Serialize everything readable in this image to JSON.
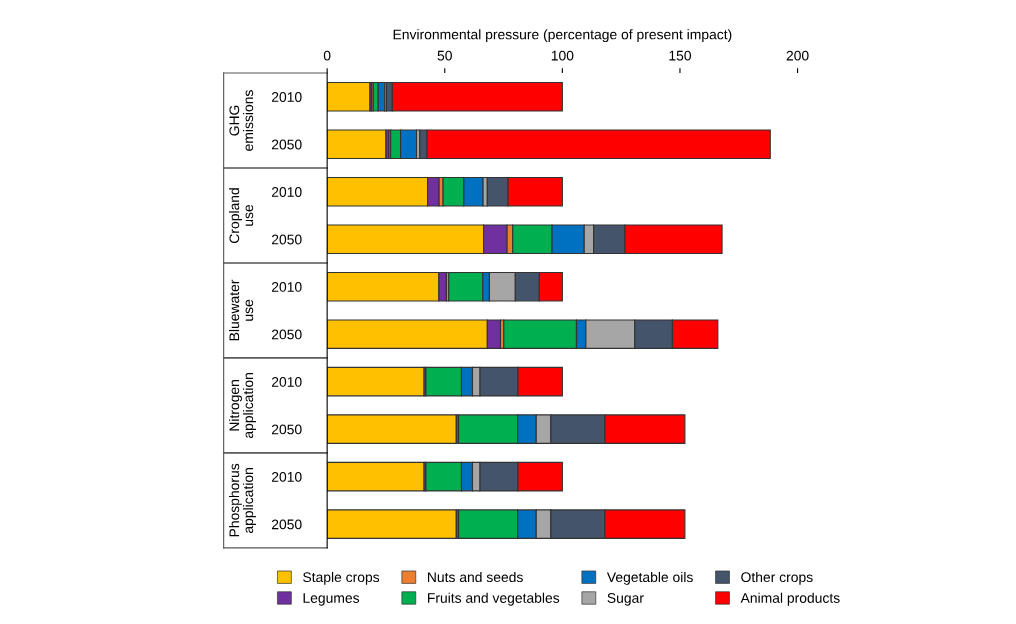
{
  "chart_data": {
    "type": "bar",
    "orientation": "horizontal",
    "stacked": true,
    "xlabel": "Environmental pressure (percentage of present impact)",
    "categories": [
      "2010",
      "2050",
      "2010",
      "2050",
      "2010",
      "2050",
      "2010",
      "2050",
      "2010",
      "2050"
    ],
    "annotations": [
      "GHG\nemissions",
      "Cropland\nuse",
      "Bluewater\nuse",
      "Nitrogen\napplication",
      "Phosphorus\napplication"
    ],
    "xlim": [
      0,
      200
    ],
    "xticks": [
      0,
      50,
      100,
      150,
      200
    ],
    "grid": false,
    "legend": "bottom",
    "series": [
      {
        "name": "Staple crops",
        "color": "#ffc000",
        "values": [
          18.2,
          25.0,
          42.7,
          66.5,
          47.5,
          68.1,
          41.2,
          54.9,
          41.2,
          54.9
        ]
      },
      {
        "name": "Legumes",
        "color": "#7030a0",
        "values": [
          0.7,
          1.3,
          4.9,
          10.0,
          3.2,
          5.6,
          0.8,
          1.0,
          0.8,
          1.0
        ]
      },
      {
        "name": "Nuts and seeds",
        "color": "#ed7d31",
        "values": [
          0.7,
          0.7,
          1.7,
          2.4,
          1.0,
          1.4,
          null,
          null,
          null,
          null
        ]
      },
      {
        "name": "Fruits and vegetables",
        "color": "#00b050",
        "values": [
          2.1,
          4.2,
          8.8,
          16.7,
          14.5,
          30.9,
          15.1,
          25.1,
          15.1,
          25.1
        ]
      },
      {
        "name": "Vegetable oils",
        "color": "#0070c0",
        "values": [
          2.8,
          6.8,
          8.2,
          13.7,
          2.8,
          4.0,
          4.7,
          7.9,
          4.7,
          7.9
        ]
      },
      {
        "name": "Sugar",
        "color": "#a6a6a6",
        "values": [
          0.7,
          1.4,
          1.8,
          4.0,
          11.0,
          20.8,
          3.2,
          6.2,
          3.2,
          6.2
        ]
      },
      {
        "name": "Other crops",
        "color": "#44546a",
        "values": [
          2.5,
          3.1,
          8.8,
          13.3,
          10.2,
          16.0,
          16.1,
          23.0,
          16.1,
          23.0
        ]
      },
      {
        "name": "Animal products",
        "color": "#ff0000",
        "values": [
          72.3,
          145.9,
          23.1,
          41.3,
          9.8,
          19.3,
          18.9,
          34.0,
          18.9,
          34.0
        ]
      }
    ]
  }
}
